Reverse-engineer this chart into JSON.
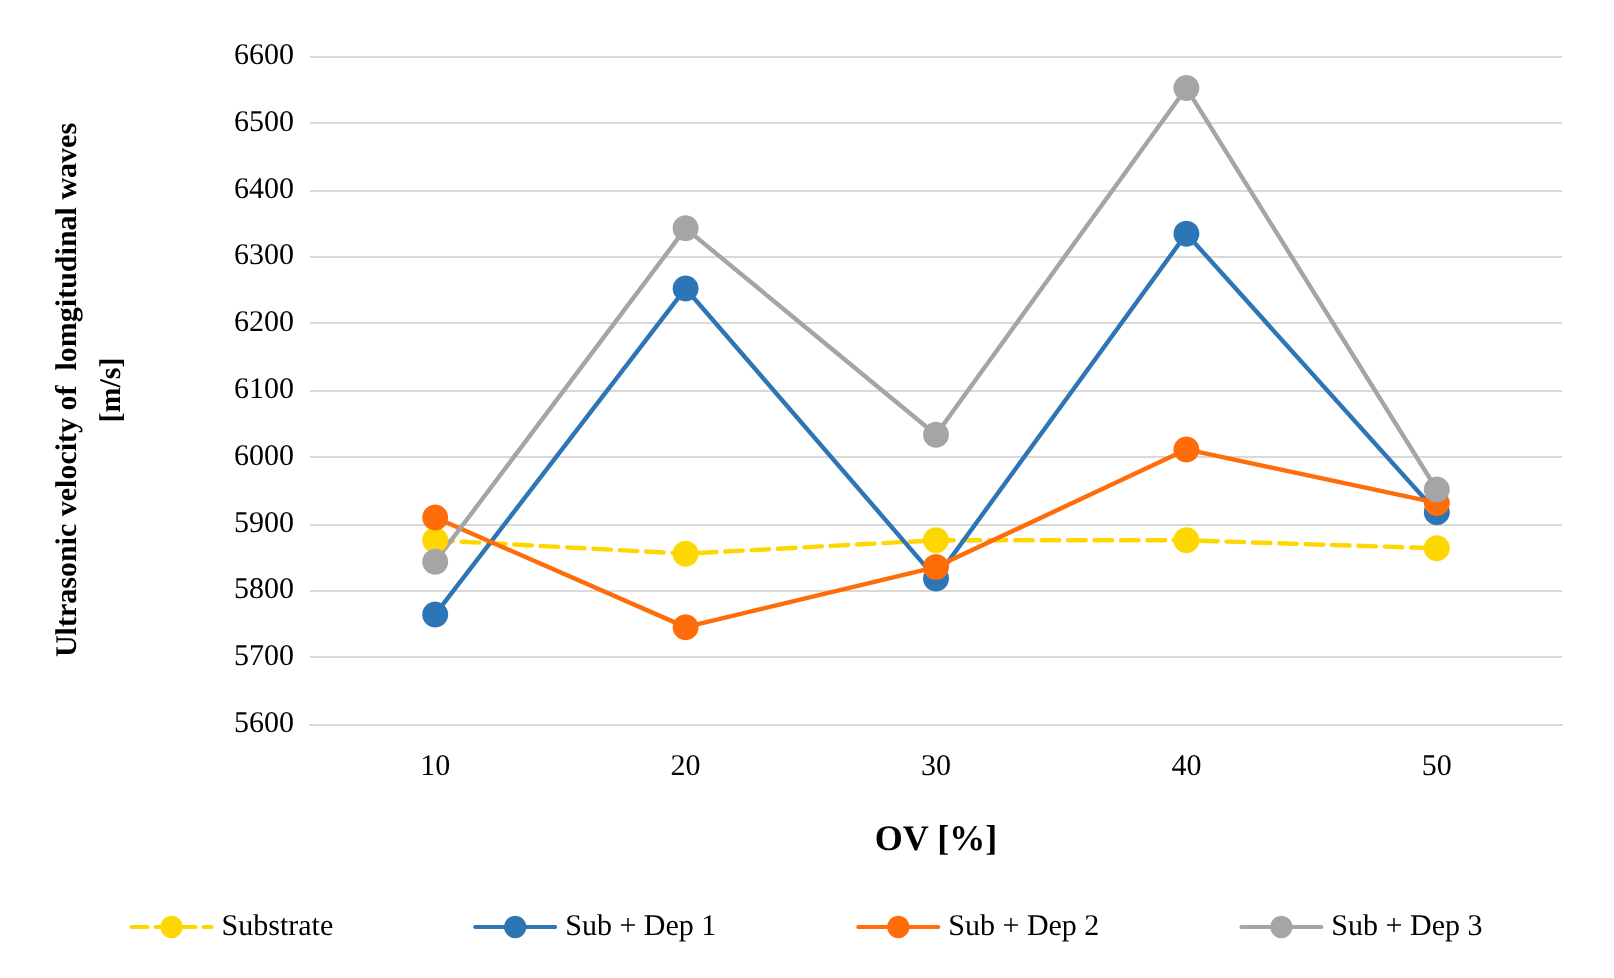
{
  "chart_data": {
    "type": "line",
    "xlabel": "OV [%]",
    "ylabel": "Ultrasonic velocity of  lomgitudinal waves\n[m/s]",
    "categories": [
      "10",
      "20",
      "30",
      "40",
      "50"
    ],
    "series": [
      {
        "name": "Substrate",
        "color": "#ffd700",
        "line_style": "dashed",
        "values": [
          5875,
          5855,
          5875,
          5875,
          5863
        ]
      },
      {
        "name": "Sub + Dep 1",
        "color": "#2e75b6",
        "line_style": "solid",
        "values": [
          5764,
          6252,
          5818,
          6334,
          5917
        ]
      },
      {
        "name": "Sub + Dep 2",
        "color": "#ff6d0a",
        "line_style": "solid",
        "values": [
          5909,
          5745,
          5835,
          6011,
          5931
        ]
      },
      {
        "name": "Sub + Dep 3",
        "color": "#a5a5a5",
        "line_style": "solid",
        "values": [
          5843,
          6342,
          6033,
          6552,
          5951
        ]
      }
    ],
    "ylim": [
      5600,
      6600
    ],
    "yticks": [
      5600,
      5700,
      5800,
      5900,
      6000,
      6100,
      6200,
      6300,
      6400,
      6500,
      6600
    ],
    "grid": "y",
    "legend": "bottom",
    "marker": "circle"
  }
}
